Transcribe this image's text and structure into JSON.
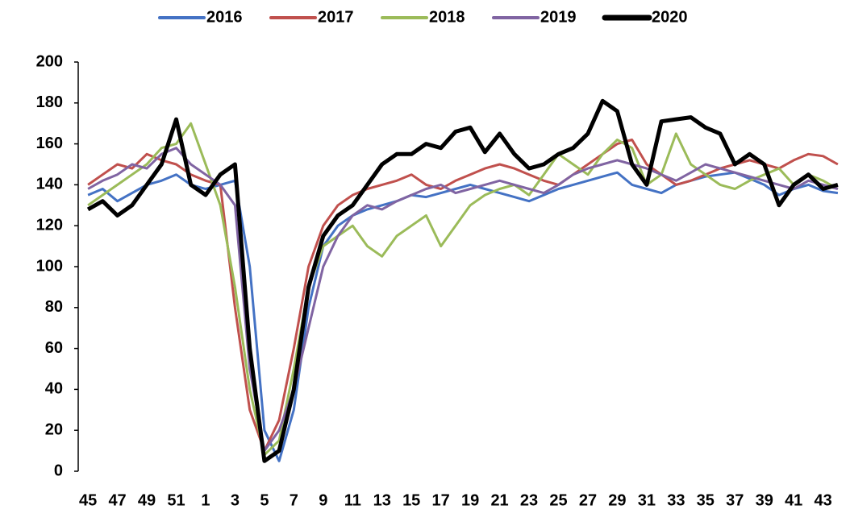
{
  "chart_data": {
    "type": "line",
    "categories": [
      "45",
      null,
      "47",
      null,
      "49",
      null,
      "51",
      null,
      "1",
      null,
      "3",
      null,
      "5",
      null,
      "7",
      null,
      "9",
      null,
      "11",
      null,
      "13",
      null,
      "15",
      null,
      "17",
      null,
      "19",
      null,
      "21",
      null,
      "23",
      null,
      "25",
      null,
      "27",
      null,
      "29",
      null,
      "31",
      null,
      "33",
      null,
      "35",
      null,
      "37",
      null,
      "39",
      null,
      "41",
      null,
      "43",
      null
    ],
    "series": [
      {
        "name": "2016",
        "color": "#4472c4",
        "values": [
          135,
          138,
          132,
          136,
          140,
          142,
          145,
          140,
          138,
          140,
          142,
          100,
          20,
          5,
          30,
          80,
          110,
          120,
          125,
          128,
          130,
          132,
          135,
          134,
          136,
          138,
          140,
          138,
          136,
          134,
          132,
          135,
          138,
          140,
          142,
          144,
          146,
          140,
          138,
          136,
          140,
          142,
          144,
          145,
          146,
          143,
          140,
          135,
          138,
          140,
          137,
          136
        ]
      },
      {
        "name": "2017",
        "color": "#c0504d",
        "values": [
          140,
          145,
          150,
          148,
          155,
          152,
          150,
          145,
          142,
          140,
          80,
          30,
          10,
          25,
          60,
          100,
          120,
          130,
          135,
          138,
          140,
          142,
          145,
          140,
          138,
          142,
          145,
          148,
          150,
          148,
          145,
          142,
          140,
          145,
          150,
          155,
          160,
          162,
          150,
          145,
          140,
          142,
          145,
          148,
          150,
          152,
          150,
          148,
          152,
          155,
          154,
          150
        ]
      },
      {
        "name": "2018",
        "color": "#9bbb59",
        "values": [
          130,
          135,
          140,
          145,
          150,
          158,
          160,
          170,
          150,
          130,
          90,
          40,
          8,
          15,
          50,
          90,
          110,
          115,
          120,
          110,
          105,
          115,
          120,
          125,
          110,
          120,
          130,
          135,
          138,
          140,
          135,
          145,
          155,
          150,
          145,
          155,
          162,
          158,
          140,
          145,
          165,
          150,
          145,
          140,
          138,
          142,
          145,
          148,
          140,
          145,
          142,
          138
        ]
      },
      {
        "name": "2019",
        "color": "#8064a2",
        "values": [
          138,
          142,
          145,
          150,
          148,
          155,
          158,
          150,
          145,
          140,
          130,
          50,
          10,
          20,
          40,
          70,
          100,
          115,
          125,
          130,
          128,
          132,
          135,
          138,
          140,
          136,
          138,
          140,
          142,
          140,
          138,
          136,
          140,
          145,
          148,
          150,
          152,
          150,
          148,
          145,
          142,
          146,
          150,
          148,
          146,
          144,
          142,
          140,
          138,
          142,
          140,
          138
        ]
      },
      {
        "name": "2020",
        "color": "#000000",
        "values": [
          128,
          132,
          125,
          130,
          140,
          150,
          172,
          140,
          135,
          145,
          150,
          60,
          5,
          10,
          40,
          90,
          115,
          125,
          130,
          140,
          150,
          155,
          155,
          160,
          158,
          166,
          168,
          156,
          165,
          155,
          148,
          150,
          155,
          158,
          165,
          181,
          176,
          150,
          140,
          171,
          172,
          173,
          168,
          165,
          150,
          155,
          150,
          130,
          140,
          145,
          138,
          140
        ]
      }
    ],
    "ylim": [
      0,
      200
    ],
    "yticks": [
      0,
      20,
      40,
      60,
      80,
      100,
      120,
      140,
      160,
      180,
      200
    ],
    "grid": false,
    "legend": "top"
  }
}
